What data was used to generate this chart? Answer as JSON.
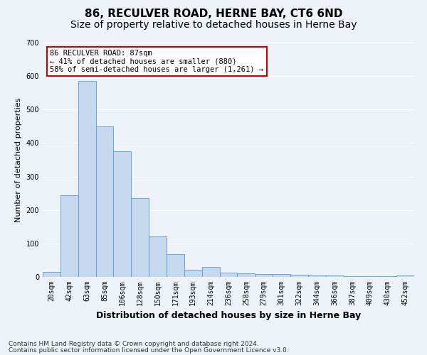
{
  "title": "86, RECULVER ROAD, HERNE BAY, CT6 6ND",
  "subtitle": "Size of property relative to detached houses in Herne Bay",
  "xlabel": "Distribution of detached houses by size in Herne Bay",
  "ylabel": "Number of detached properties",
  "categories": [
    "20sqm",
    "42sqm",
    "63sqm",
    "85sqm",
    "106sqm",
    "128sqm",
    "150sqm",
    "171sqm",
    "193sqm",
    "214sqm",
    "236sqm",
    "258sqm",
    "279sqm",
    "301sqm",
    "322sqm",
    "344sqm",
    "366sqm",
    "387sqm",
    "409sqm",
    "430sqm",
    "452sqm"
  ],
  "values": [
    15,
    245,
    585,
    450,
    375,
    235,
    120,
    68,
    22,
    30,
    13,
    10,
    8,
    8,
    6,
    4,
    5,
    3,
    2,
    2,
    5
  ],
  "bar_color": "#c5d8ed",
  "bar_edge_color": "#5b9bd5",
  "ylim": [
    0,
    700
  ],
  "yticks": [
    0,
    100,
    200,
    300,
    400,
    500,
    600,
    700
  ],
  "annotation_text": "86 RECULVER ROAD: 87sqm\n← 41% of detached houses are smaller (880)\n58% of semi-detached houses are larger (1,261) →",
  "annotation_box_color": "#ffffff",
  "annotation_box_edge": "#cc0000",
  "footer1": "Contains HM Land Registry data © Crown copyright and database right 2024.",
  "footer2": "Contains public sector information licensed under the Open Government Licence v3.0.",
  "background_color": "#eef2f9",
  "grid_color": "#ffffff",
  "title_fontsize": 11,
  "subtitle_fontsize": 10,
  "ylabel_fontsize": 8,
  "xlabel_fontsize": 9,
  "tick_fontsize": 7,
  "footer_fontsize": 6.5
}
